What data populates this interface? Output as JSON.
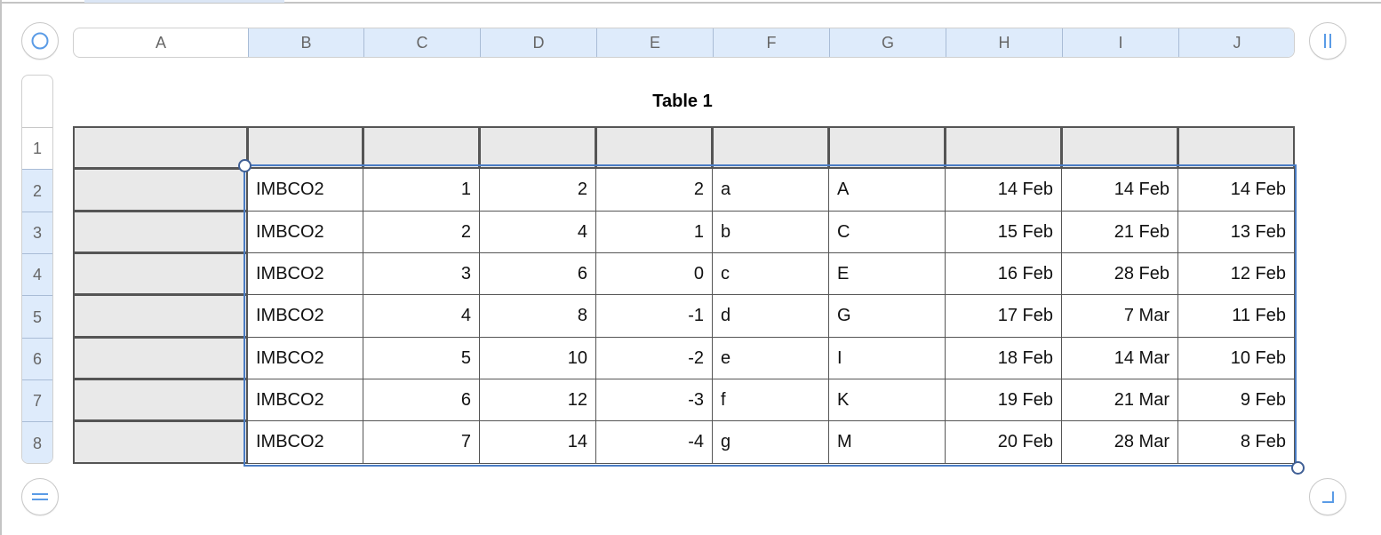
{
  "table_title": "Table 1",
  "accent_color": "#4a7cc4",
  "columns": [
    "A",
    "B",
    "C",
    "D",
    "E",
    "F",
    "G",
    "H",
    "I",
    "J"
  ],
  "selected_columns": [
    "B",
    "C",
    "D",
    "E",
    "F",
    "G",
    "H",
    "I",
    "J"
  ],
  "rows": [
    "1",
    "2",
    "3",
    "4",
    "5",
    "6",
    "7",
    "8"
  ],
  "selected_rows": [
    "2",
    "3",
    "4",
    "5",
    "6",
    "7",
    "8"
  ],
  "cells": [
    [
      "",
      "",
      "",
      "",
      "",
      "",
      "",
      "",
      "",
      ""
    ],
    [
      "",
      "IMBCO2",
      "1",
      "2",
      "2",
      "a",
      "A",
      "14 Feb",
      "14 Feb",
      "14 Feb"
    ],
    [
      "",
      "IMBCO2",
      "2",
      "4",
      "1",
      "b",
      "C",
      "15 Feb",
      "21 Feb",
      "13 Feb"
    ],
    [
      "",
      "IMBCO2",
      "3",
      "6",
      "0",
      "c",
      "E",
      "16 Feb",
      "28 Feb",
      "12 Feb"
    ],
    [
      "",
      "IMBCO2",
      "4",
      "8",
      "-1",
      "d",
      "G",
      "17 Feb",
      "7 Mar",
      "11 Feb"
    ],
    [
      "",
      "IMBCO2",
      "5",
      "10",
      "-2",
      "e",
      "I",
      "18 Feb",
      "14 Mar",
      "10 Feb"
    ],
    [
      "",
      "IMBCO2",
      "6",
      "12",
      "-3",
      "f",
      "K",
      "19 Feb",
      "21 Mar",
      "9 Feb"
    ],
    [
      "",
      "IMBCO2",
      "7",
      "14",
      "-4",
      "g",
      "M",
      "20 Feb",
      "28 Mar",
      "8 Feb"
    ]
  ],
  "numeric_columns": [
    "C",
    "D",
    "E",
    "H",
    "I",
    "J"
  ],
  "icons": {
    "select_table": "circle-icon",
    "add_columns": "columns-handle-icon",
    "add_rows": "rows-handle-icon",
    "resize": "corner-resize-icon"
  }
}
